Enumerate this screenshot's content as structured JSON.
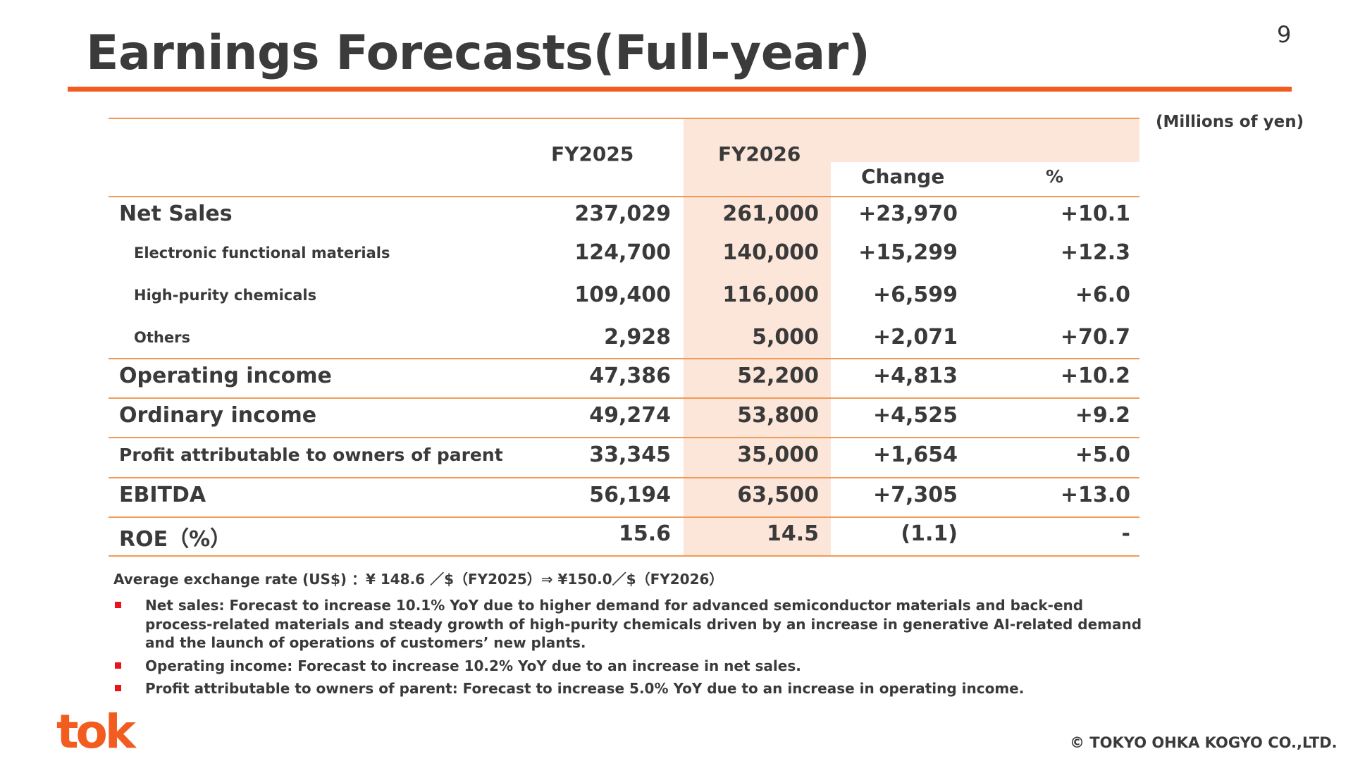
{
  "page_number": "9",
  "title": "Earnings Forecasts(Full-year)",
  "units_note": "(Millions of yen)",
  "table": {
    "headers": {
      "fy2025": "FY2025",
      "fy2026": "FY2026",
      "change": "Change",
      "percent": "%"
    },
    "rows": [
      {
        "label": "Net Sales",
        "fy2025": "237,029",
        "fy2026": "261,000",
        "change": "+23,970",
        "percent": "+10.1"
      },
      {
        "label": "Electronic functional materials",
        "fy2025": "124,700",
        "fy2026": "140,000",
        "change": "+15,299",
        "percent": "+12.3"
      },
      {
        "label": "High-purity chemicals",
        "fy2025": "109,400",
        "fy2026": "116,000",
        "change": "+6,599",
        "percent": "+6.0"
      },
      {
        "label": "Others",
        "fy2025": "2,928",
        "fy2026": "5,000",
        "change": "+2,071",
        "percent": "+70.7"
      },
      {
        "label": "Operating income",
        "fy2025": "47,386",
        "fy2026": "52,200",
        "change": "+4,813",
        "percent": "+10.2"
      },
      {
        "label": "Ordinary income",
        "fy2025": "49,274",
        "fy2026": "53,800",
        "change": "+4,525",
        "percent": "+9.2"
      },
      {
        "label": "Profit attributable to owners of parent",
        "fy2025": "33,345",
        "fy2026": "35,000",
        "change": "+1,654",
        "percent": "+5.0"
      },
      {
        "label": "EBITDA",
        "fy2025": "56,194",
        "fy2026": "63,500",
        "change": "+7,305",
        "percent": "+13.0"
      },
      {
        "label": "ROE（%）",
        "fy2025": "15.6",
        "fy2026": "14.5",
        "change": "(1.1)",
        "percent": "-"
      }
    ]
  },
  "exchange_note": "Average exchange rate (US$) ：¥ 148.6 ／$（FY2025）⇒ ¥150.0／$（FY2026）",
  "bullets": [
    "Net sales: Forecast to increase 10.1% YoY due to higher demand for advanced semiconductor materials and back-end process-related materials and steady growth of high-purity chemicals driven by an increase in generative AI-related demand and the launch of operations of customers’ new plants.",
    "Operating income: Forecast to increase 10.2% YoY due to an increase in net sales.",
    "Profit attributable to owners of parent: Forecast to increase 5.0% YoY due to an increase in operating income."
  ],
  "logo_text": "tok",
  "copyright": "© TOKYO OHKA KOGYO CO.,LTD.",
  "colors": {
    "accent_orange": "#f25c1e",
    "table_highlight": "#fce6da",
    "table_rule": "#f29a55",
    "bullet_red": "#e8141b",
    "text": "#3a3a3a"
  }
}
